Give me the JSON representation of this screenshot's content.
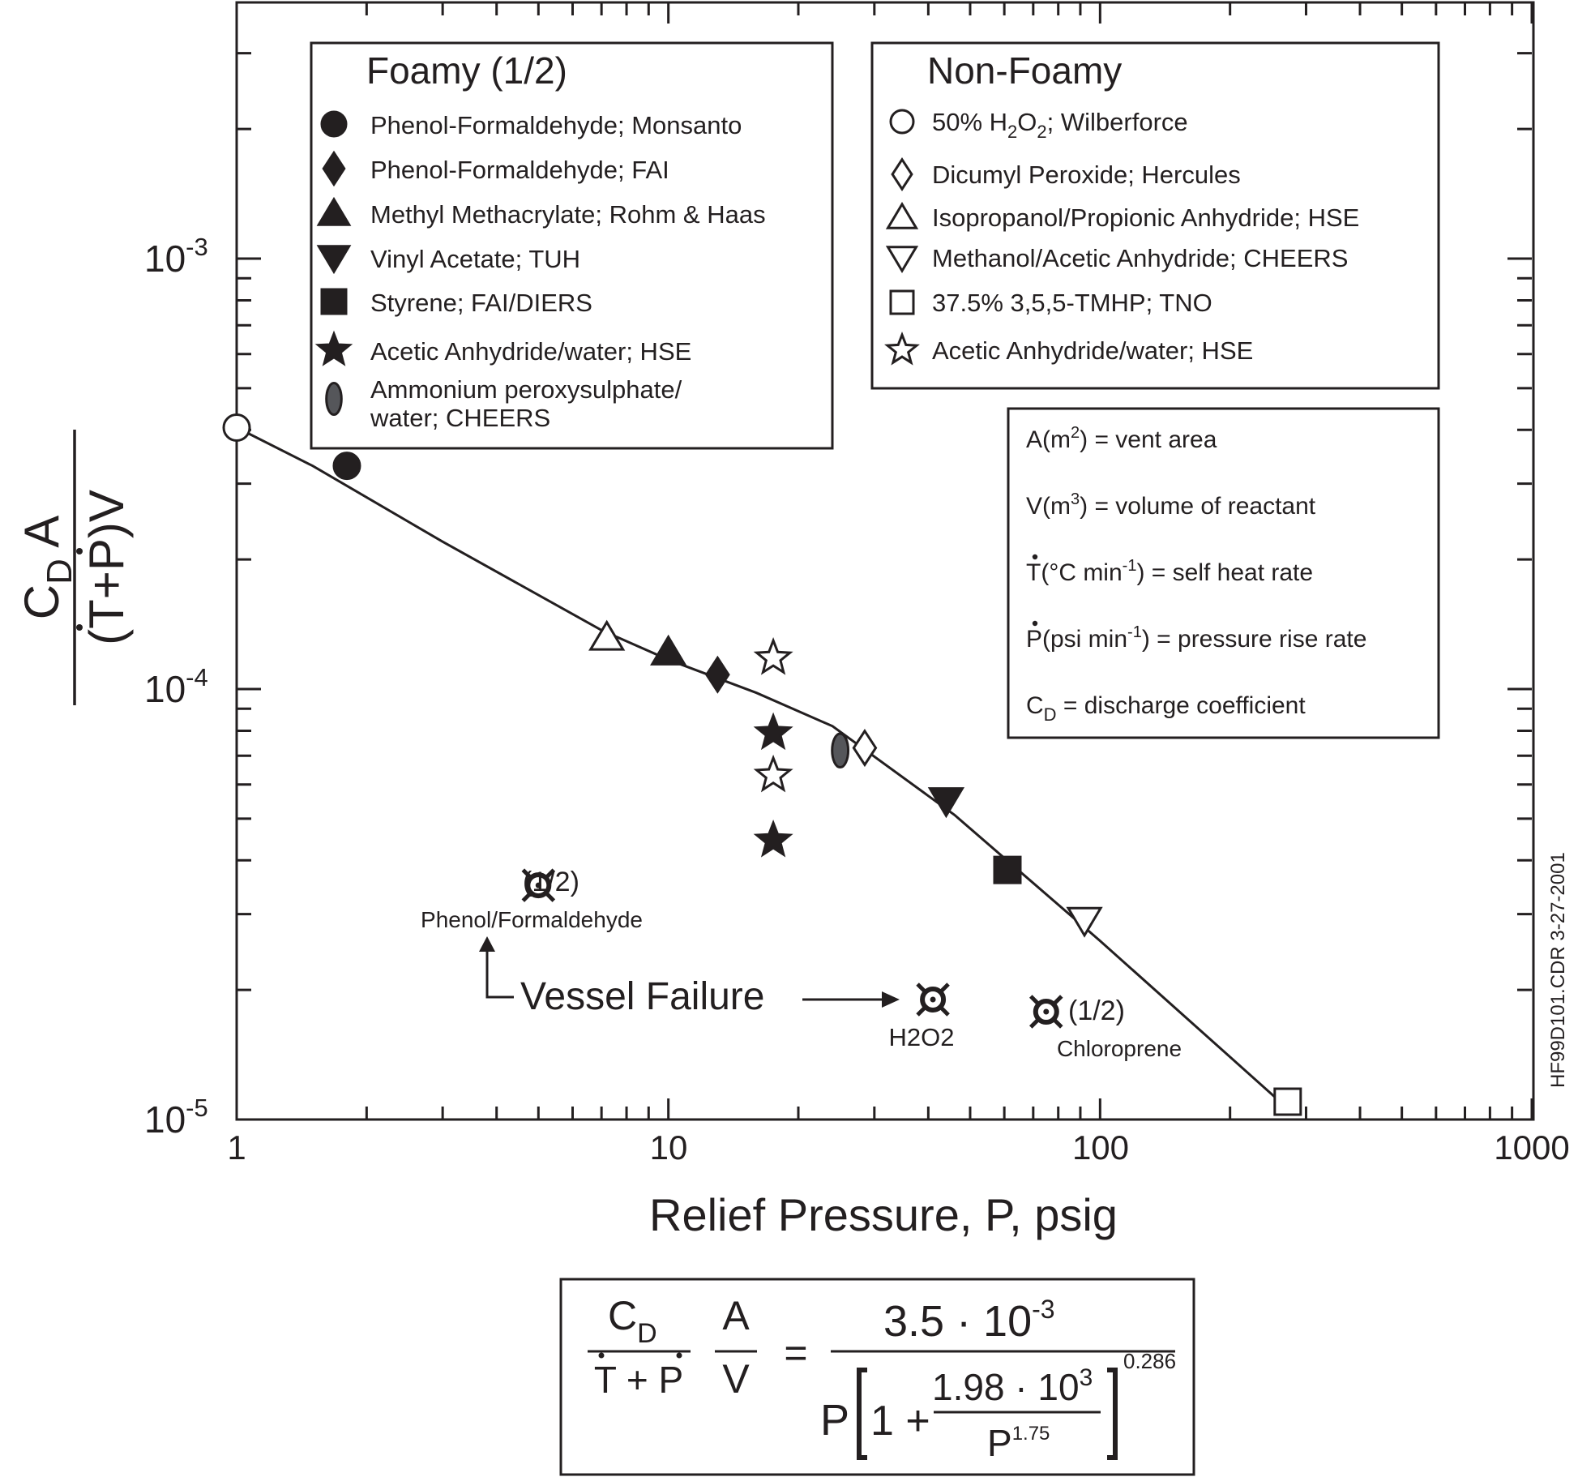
{
  "chart_data": {
    "type": "scatter",
    "xscale": "log",
    "yscale": "log",
    "xlim": [
      1,
      1000
    ],
    "ylim": [
      1e-05,
      0.003
    ],
    "xlabel": "Relief Pressure, P, psig",
    "ylabel": {
      "num_C": "C",
      "num_sub": "D",
      "num_A": " A",
      "den": "(T+P)V"
    },
    "xticklabels": [
      "1",
      "10",
      "100",
      "1000"
    ],
    "yticklabels": [
      {
        "value": 0.001,
        "base": "10",
        "exp": "-3"
      },
      {
        "value": 0.0001,
        "base": "10",
        "exp": "-4"
      },
      {
        "value": 1e-05,
        "base": "10",
        "exp": "-5"
      }
    ],
    "colors": {
      "ink": "#231f20",
      "ellipse": "#55565a"
    },
    "curve": {
      "note": "solid line: C_D/(Tdot+Pdot) A/V = 3.5e-3 / (P [1 + 1.98e3 / P^1.75]^0.286)",
      "x": [
        1,
        1.5,
        3,
        7,
        10,
        16,
        24,
        46,
        100,
        275
      ],
      "y": [
        0.000405,
        0.00033,
        0.00022,
        0.000137,
        0.000117,
        9.8e-05,
        8.2e-05,
        5.1e-05,
        2.6e-05,
        1.05e-05
      ]
    },
    "series": [
      {
        "name": "Phenol-Formaldehyde; Monsanto",
        "marker": "circle",
        "filled": true,
        "points": [
          [
            1.8,
            0.00033
          ]
        ]
      },
      {
        "name": "Phenol-Formaldehyde; FAI",
        "marker": "diamond",
        "filled": true,
        "points": [
          [
            13,
            0.000108
          ]
        ]
      },
      {
        "name": "Methyl Methacrylate; Rohm & Haas",
        "marker": "triangle-up",
        "filled": true,
        "points": [
          [
            10,
            0.000122
          ]
        ]
      },
      {
        "name": "Vinyl Acetate; TUH",
        "marker": "triangle-down",
        "filled": true,
        "points": [
          [
            44,
            5.5e-05
          ]
        ]
      },
      {
        "name": "Styrene; FAI/DIERS",
        "marker": "square",
        "filled": true,
        "points": [
          [
            61,
            3.8e-05
          ]
        ]
      },
      {
        "name": "Acetic Anhydride/water; HSE",
        "marker": "star",
        "filled": true,
        "points": [
          [
            17.5,
            7.9e-05
          ],
          [
            17.5,
            4.45e-05
          ]
        ]
      },
      {
        "name": "Ammonium peroxysulphate/\nwater; CHEERS",
        "marker": "ellipse",
        "filled": true,
        "points": [
          [
            25,
            7.2e-05
          ]
        ]
      },
      {
        "name": "50% H2O2; Wilberforce",
        "marker": "circle",
        "filled": false,
        "points": [
          [
            1,
            0.000405
          ]
        ]
      },
      {
        "name": "Dicumyl Peroxide; Hercules",
        "marker": "diamond",
        "filled": false,
        "points": [
          [
            28.5,
            7.3e-05
          ]
        ]
      },
      {
        "name": "Isopropanol/Propionic Anhydride; HSE",
        "marker": "triangle-up",
        "filled": false,
        "points": [
          [
            7.2,
            0.000132
          ]
        ]
      },
      {
        "name": "Methanol/Acetic Anhydride; CHEERS",
        "marker": "triangle-down",
        "filled": false,
        "points": [
          [
            92,
            2.9e-05
          ]
        ]
      },
      {
        "name": "37.5% 3,5,5-TMHP; TNO",
        "marker": "square",
        "filled": false,
        "points": [
          [
            272,
            1.1e-05
          ]
        ]
      },
      {
        "name": "Acetic Anhydride/water; HSE",
        "marker": "star",
        "filled": false,
        "points": [
          [
            17.5,
            0.000118
          ],
          [
            17.5,
            6.3e-05
          ]
        ]
      }
    ],
    "failures": [
      {
        "label": "Phenol/Formaldehyde",
        "tag": "(1/2)",
        "x": 5,
        "y": 3.5e-05
      },
      {
        "label": "H2O2",
        "tag": "",
        "x": 41,
        "y": 1.9e-05
      },
      {
        "label": "Chloroprene",
        "tag": "(1/2)",
        "x": 75,
        "y": 1.78e-05
      }
    ],
    "vessel_failure_label": "Vessel Failure",
    "legend_foamy_title": "Foamy (1/2)",
    "legend_nonfoamy_title": "Non-Foamy",
    "definitions": [
      {
        "sym": "A(m",
        "sup": "2",
        "rest": ") = vent area"
      },
      {
        "sym": "V(m",
        "sup": "3",
        "rest": ") = volume of reactant"
      },
      {
        "sym": "T(°C min",
        "sup": "-1",
        "rest": ") = self heat rate"
      },
      {
        "sym": "P(psi min",
        "sup": "-1",
        "rest": ") = pressure rise rate"
      },
      {
        "sym": "C",
        "sub": "D",
        "rest": " = discharge coefficient"
      }
    ],
    "side_label": "HF99D101.CDR 3-27-2001",
    "equation": {
      "lhs_num": "C",
      "lhs_num_sub": "D",
      "lhs_den": "T + P",
      "av_num": "A",
      "av_den": "V",
      "equals": "=",
      "rhs_num": "3.5 · 10",
      "rhs_num_exp": "-3",
      "rhs_P": "P",
      "rhs_one_plus": "1 +",
      "rhs_inner_num": "1.98 · 10",
      "rhs_inner_num_exp": "3",
      "rhs_inner_den": "P",
      "rhs_inner_den_exp": "1.75",
      "rhs_outer_exp": "0.286"
    }
  }
}
